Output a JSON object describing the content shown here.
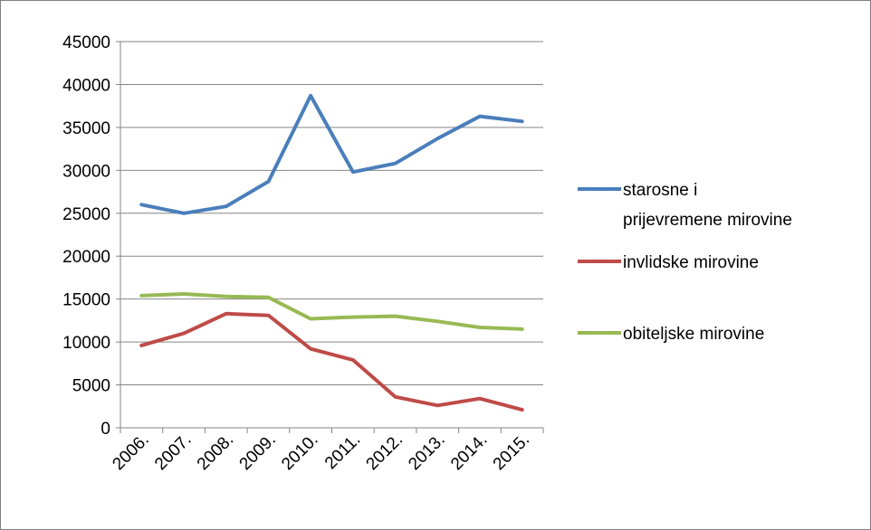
{
  "chart_data": {
    "type": "line",
    "title": "",
    "xlabel": "",
    "ylabel": "",
    "categories": [
      "2006.",
      "2007.",
      "2008.",
      "2009.",
      "2010.",
      "2011.",
      "2012.",
      "2013.",
      "2014.",
      "2015."
    ],
    "ylim": [
      0,
      45000
    ],
    "yticks": [
      "0",
      "5000",
      "10000",
      "15000",
      "20000",
      "25000",
      "30000",
      "35000",
      "40000",
      "45000"
    ],
    "grid": true,
    "legend_position": "right",
    "series": [
      {
        "name_lines": [
          "starosne i",
          "prijevremene mirovine"
        ],
        "color": "#4a7ebb",
        "values": [
          26000,
          25000,
          25800,
          28700,
          38700,
          29800,
          30800,
          33700,
          36300,
          35700
        ]
      },
      {
        "name_lines": [
          "invlidske mirovine"
        ],
        "color": "#be4b48",
        "values": [
          9600,
          11000,
          13300,
          13100,
          9200,
          7900,
          3600,
          2600,
          3400,
          2100
        ]
      },
      {
        "name_lines": [
          "obiteljske mirovine"
        ],
        "color": "#98b954",
        "values": [
          15400,
          15600,
          15300,
          15200,
          12700,
          12900,
          13000,
          12400,
          11700,
          11500
        ]
      }
    ]
  }
}
